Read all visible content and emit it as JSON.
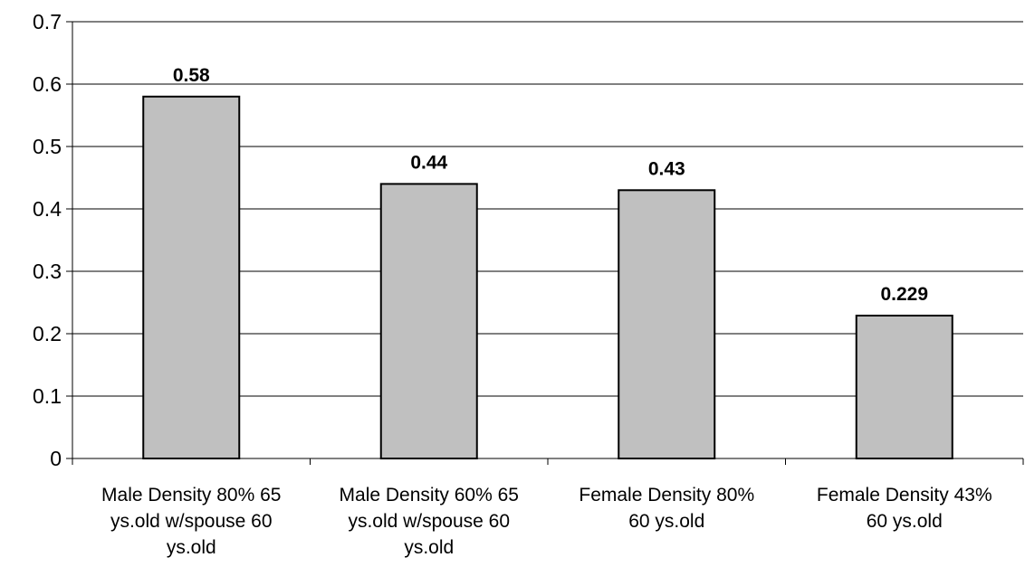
{
  "chart_data": {
    "type": "bar",
    "title": "",
    "xlabel": "",
    "ylabel": "",
    "ylim": [
      0,
      0.7
    ],
    "yticks": [
      "0",
      "0.1",
      "0.2",
      "0.3",
      "0.4",
      "0.5",
      "0.6",
      "0.7"
    ],
    "grid": true,
    "legend": "none",
    "categories": [
      [
        "Male Density 80% 65",
        "ys.old w/spouse 60",
        "ys.old"
      ],
      [
        "Male Density 60% 65",
        "ys.old w/spouse 60",
        "ys.old"
      ],
      [
        "Female Density 80%",
        "60 ys.old"
      ],
      [
        "Female Density 43%",
        "60 ys.old"
      ]
    ],
    "values": [
      0.58,
      0.44,
      0.43,
      0.229
    ],
    "data_labels": [
      "0.58",
      "0.44",
      "0.43",
      "0.229"
    ],
    "colors": {
      "bar_fill": "#c0c0c0",
      "bar_stroke": "#000000",
      "grid": "#000000",
      "axis": "#000000"
    }
  }
}
